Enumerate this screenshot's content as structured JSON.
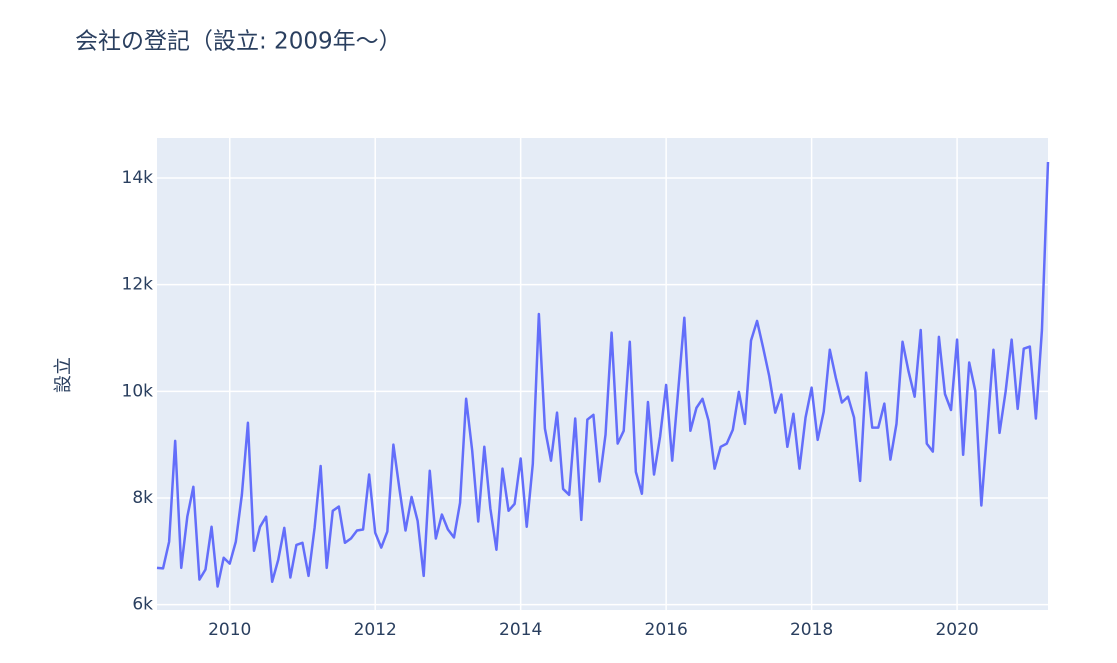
{
  "chart_data": {
    "type": "line",
    "title": "会社の登記（設立: 2009年〜）",
    "y_label": "設立",
    "color": "#636efa",
    "grid": true,
    "x": [
      "2009-01",
      "2009-02",
      "2009-03",
      "2009-04",
      "2009-05",
      "2009-06",
      "2009-07",
      "2009-08",
      "2009-09",
      "2009-10",
      "2009-11",
      "2009-12",
      "2010-01",
      "2010-02",
      "2010-03",
      "2010-04",
      "2010-05",
      "2010-06",
      "2010-07",
      "2010-08",
      "2010-09",
      "2010-10",
      "2010-11",
      "2010-12",
      "2011-01",
      "2011-02",
      "2011-03",
      "2011-04",
      "2011-05",
      "2011-06",
      "2011-07",
      "2011-08",
      "2011-09",
      "2011-10",
      "2011-11",
      "2011-12",
      "2012-01",
      "2012-02",
      "2012-03",
      "2012-04",
      "2012-05",
      "2012-06",
      "2012-07",
      "2012-08",
      "2012-09",
      "2012-10",
      "2012-11",
      "2012-12",
      "2013-01",
      "2013-02",
      "2013-03",
      "2013-04",
      "2013-05",
      "2013-06",
      "2013-07",
      "2013-08",
      "2013-09",
      "2013-10",
      "2013-11",
      "2013-12",
      "2014-01",
      "2014-02",
      "2014-03",
      "2014-04",
      "2014-05",
      "2014-06",
      "2014-07",
      "2014-08",
      "2014-09",
      "2014-10",
      "2014-11",
      "2014-12",
      "2015-01",
      "2015-02",
      "2015-03",
      "2015-04",
      "2015-05",
      "2015-06",
      "2015-07",
      "2015-08",
      "2015-09",
      "2015-10",
      "2015-11",
      "2015-12",
      "2016-01",
      "2016-02",
      "2016-03",
      "2016-04",
      "2016-05",
      "2016-06",
      "2016-07",
      "2016-08",
      "2016-09",
      "2016-10",
      "2016-11",
      "2016-12",
      "2017-01",
      "2017-02",
      "2017-03",
      "2017-04",
      "2017-05",
      "2017-06",
      "2017-07",
      "2017-08",
      "2017-09",
      "2017-10",
      "2017-11",
      "2017-12",
      "2018-01",
      "2018-02",
      "2018-03",
      "2018-04",
      "2018-05",
      "2018-06",
      "2018-07",
      "2018-08",
      "2018-09",
      "2018-10",
      "2018-11",
      "2018-12",
      "2019-01",
      "2019-02",
      "2019-03",
      "2019-04",
      "2019-05",
      "2019-06",
      "2019-07",
      "2019-08",
      "2019-09",
      "2019-10",
      "2019-11",
      "2019-12",
      "2020-01",
      "2020-02",
      "2020-03",
      "2020-04",
      "2020-05",
      "2020-06",
      "2020-07",
      "2020-08",
      "2020-09",
      "2020-10",
      "2020-11",
      "2020-12",
      "2021-01",
      "2021-02",
      "2021-03",
      "2021-04"
    ],
    "values": [
      6690,
      6680,
      7180,
      9070,
      6690,
      7650,
      8210,
      6470,
      6660,
      7460,
      6340,
      6880,
      6770,
      7180,
      8060,
      9410,
      7010,
      7460,
      7650,
      6430,
      6840,
      7440,
      6510,
      7120,
      7160,
      6540,
      7440,
      8600,
      6690,
      7760,
      7840,
      7160,
      7240,
      7390,
      7410,
      8440,
      7350,
      7070,
      7370,
      9000,
      8170,
      7390,
      8020,
      7570,
      6540,
      8510,
      7240,
      7690,
      7410,
      7260,
      7910,
      9860,
      8890,
      7560,
      8960,
      7800,
      7030,
      8550,
      7760,
      7890,
      8740,
      7460,
      8640,
      11450,
      9300,
      8700,
      9600,
      8170,
      8060,
      9490,
      7590,
      9470,
      9560,
      8310,
      9190,
      11100,
      9020,
      9260,
      10930,
      8490,
      8080,
      9800,
      8440,
      9150,
      10120,
      8700,
      10030,
      11380,
      9260,
      9690,
      9860,
      9450,
      8550,
      8960,
      9020,
      9280,
      9990,
      9390,
      10950,
      11320,
      10820,
      10290,
      9600,
      9940,
      8960,
      9580,
      8550,
      9510,
      10070,
      9090,
      9620,
      10780,
      10250,
      9790,
      9900,
      9510,
      8320,
      10350,
      9320,
      9320,
      9770,
      8720,
      9390,
      10930,
      10370,
      9900,
      11150,
      9020,
      8870,
      11020,
      9950,
      9650,
      10970,
      8810,
      10540,
      10010,
      7860,
      9320,
      10780,
      9220,
      9990,
      10970,
      9670,
      10800,
      10840,
      9490,
      11150,
      14300
    ],
    "xlim": [
      "2009-01",
      "2021-04"
    ],
    "xticks": [
      2010,
      2012,
      2014,
      2016,
      2018,
      2020
    ],
    "ylim": [
      5900,
      14750
    ],
    "yticks": [
      {
        "value": 6000,
        "label": "6k"
      },
      {
        "value": 8000,
        "label": "8k"
      },
      {
        "value": 10000,
        "label": "10k"
      },
      {
        "value": 12000,
        "label": "12k"
      },
      {
        "value": 14000,
        "label": "14k"
      }
    ]
  }
}
